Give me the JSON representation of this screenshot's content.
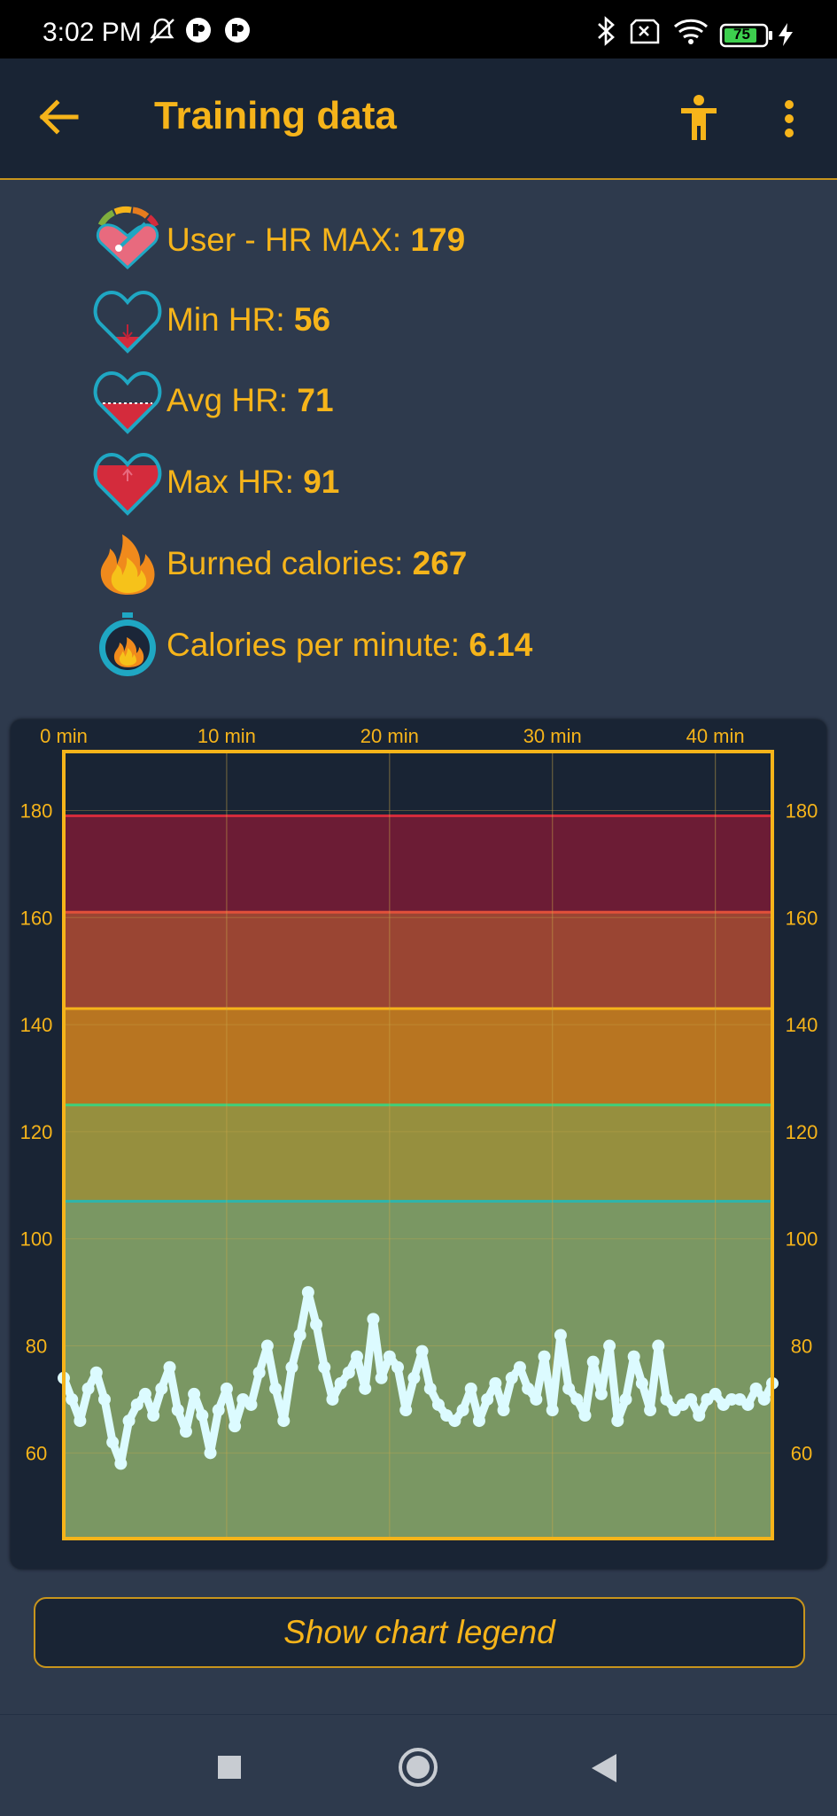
{
  "status_bar": {
    "time": "3:02 PM",
    "battery": "75"
  },
  "app_bar": {
    "title": "Training data",
    "icons": [
      "back-arrow-icon",
      "person-icon",
      "more-vert-icon"
    ]
  },
  "stats": [
    {
      "label": "User - HR MAX: ",
      "value": "179",
      "icon": "hr-max-gauge-icon"
    },
    {
      "label": "Min HR: ",
      "value": "56",
      "icon": "heart-min-icon"
    },
    {
      "label": "Avg HR: ",
      "value": "71",
      "icon": "heart-avg-icon"
    },
    {
      "label": "Max HR: ",
      "value": "91",
      "icon": "heart-max-icon"
    },
    {
      "label": "Burned calories: ",
      "value": "267",
      "icon": "flame-icon"
    },
    {
      "label": "Calories per minute: ",
      "value": "6.14",
      "icon": "stopwatch-flame-icon"
    }
  ],
  "chart_data": {
    "type": "scatter",
    "x_tick_labels": [
      "0 min",
      "10 min",
      "20 min",
      "30 min",
      "40 min"
    ],
    "x_ticks": [
      0,
      10,
      20,
      30,
      40
    ],
    "xlim": [
      0,
      43.5
    ],
    "y_ticks": [
      60,
      80,
      100,
      120,
      140,
      160,
      180
    ],
    "ylim": [
      44,
      191
    ],
    "grid": true,
    "zones": [
      {
        "from": 44,
        "to": 107,
        "color": "#7a9763"
      },
      {
        "from": 107,
        "to": 125,
        "color": "#968f3e"
      },
      {
        "from": 125,
        "to": 143,
        "color": "#b87521"
      },
      {
        "from": 143,
        "to": 161,
        "color": "#9a4533"
      },
      {
        "from": 161,
        "to": 179,
        "color": "#6c1c35"
      }
    ],
    "zone_lines": [
      {
        "y": 107,
        "color": "#2cb6ad"
      },
      {
        "y": 125,
        "color": "#3ed07a"
      },
      {
        "y": 143,
        "color": "#f6b41a"
      },
      {
        "y": 161,
        "color": "#e2503a"
      },
      {
        "y": 179,
        "color": "#d42b3c"
      }
    ],
    "point_color": "#dcfbff",
    "series": [
      {
        "x": [
          0,
          0.5,
          1,
          1.5,
          2,
          2.5,
          3,
          3.5,
          4,
          4.5,
          5,
          5.5,
          6,
          6.5,
          7,
          7.5,
          8,
          8.5,
          9,
          9.5,
          10,
          10.5,
          11,
          11.5,
          12,
          12.5,
          13,
          13.5,
          14,
          14.5,
          15,
          15.5,
          16,
          16.5,
          17,
          17.5,
          18,
          18.5,
          19,
          19.5,
          20,
          20.5,
          21,
          21.5,
          22,
          22.5,
          23,
          23.5,
          24,
          24.5,
          25,
          25.5,
          26,
          26.5,
          27,
          27.5,
          28,
          28.5,
          29,
          29.5,
          30,
          30.5,
          31,
          31.5,
          32,
          32.5,
          33,
          33.5,
          34,
          34.5,
          35,
          35.5,
          36,
          36.5,
          37,
          37.5,
          38,
          38.5,
          39,
          39.5,
          40,
          40.5,
          41,
          41.5,
          42,
          42.5,
          43,
          43.5
        ],
        "y": [
          74,
          70,
          66,
          72,
          75,
          70,
          62,
          58,
          66,
          69,
          71,
          67,
          72,
          76,
          68,
          64,
          71,
          67,
          60,
          68,
          72,
          65,
          70,
          69,
          75,
          80,
          72,
          66,
          76,
          82,
          90,
          84,
          76,
          70,
          73,
          75,
          78,
          72,
          85,
          74,
          78,
          76,
          68,
          74,
          79,
          72,
          69,
          67,
          66,
          68,
          72,
          66,
          70,
          73,
          68,
          74,
          76,
          72,
          70,
          78,
          68,
          82,
          72,
          70,
          67,
          77,
          71,
          80,
          66,
          70,
          78,
          73,
          68,
          80,
          70,
          68,
          69,
          70,
          67,
          70,
          71,
          69,
          70,
          70,
          69,
          72,
          70,
          73
        ]
      }
    ]
  }
}
